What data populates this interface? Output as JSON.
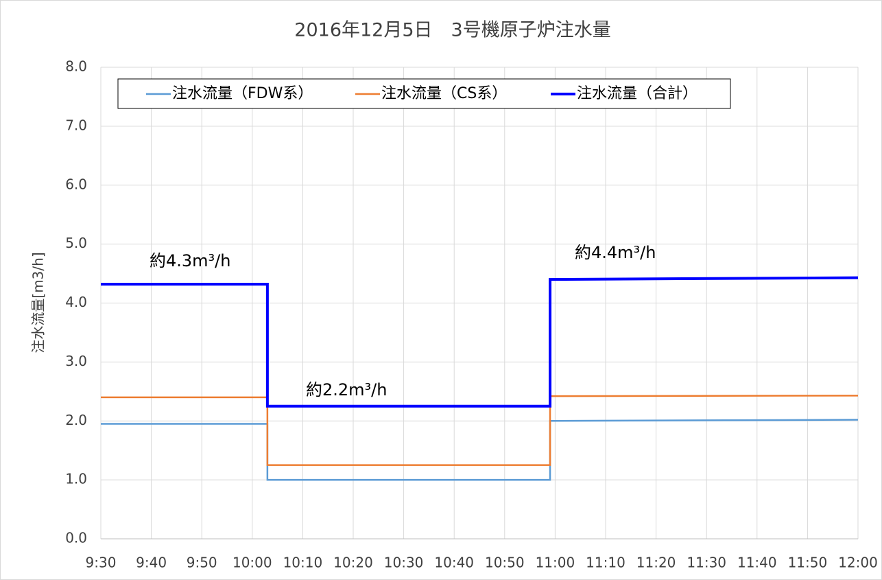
{
  "chart_data": {
    "type": "line",
    "title": "2016年12月5日　3号機原子炉注水量",
    "y_label": "注水流量[m3/h]",
    "x": [
      "9:30",
      "10:03",
      "10:03",
      "10:59",
      "10:59",
      "12:00"
    ],
    "xlim": [
      "9:30",
      "12:00"
    ],
    "xticks": [
      "9:30",
      "9:40",
      "9:50",
      "10:00",
      "10:10",
      "10:20",
      "10:30",
      "10:40",
      "10:50",
      "11:00",
      "11:10",
      "11:20",
      "11:30",
      "11:40",
      "11:50",
      "12:00"
    ],
    "ylim": [
      0,
      8
    ],
    "yticks": [
      {
        "value": 0,
        "label": "0.0"
      },
      {
        "value": 1,
        "label": "1.0"
      },
      {
        "value": 2,
        "label": "2.0"
      },
      {
        "value": 3,
        "label": "3.0"
      },
      {
        "value": 4,
        "label": "4.0"
      },
      {
        "value": 5,
        "label": "5.0"
      },
      {
        "value": 6,
        "label": "6.0"
      },
      {
        "value": 7,
        "label": "7.0"
      },
      {
        "value": 8,
        "label": "8.0"
      }
    ],
    "grid": true,
    "legend": "top",
    "series": [
      {
        "name": "注水流量（FDW系）",
        "color": "#5b9bd5",
        "values": [
          1.95,
          1.95,
          1.0,
          1.0,
          2.0,
          2.02
        ]
      },
      {
        "name": "注水流量（CS系）",
        "color": "#ed7d31",
        "values": [
          2.4,
          2.4,
          1.25,
          1.25,
          2.42,
          2.43
        ]
      },
      {
        "name": "注水流量（合計）",
        "color": "#0000ff",
        "values": [
          4.32,
          4.32,
          2.25,
          2.25,
          4.4,
          4.43
        ]
      }
    ],
    "annotations": [
      "約4.3m³/h",
      "約2.2m³/h",
      "約4.4m³/h"
    ]
  }
}
